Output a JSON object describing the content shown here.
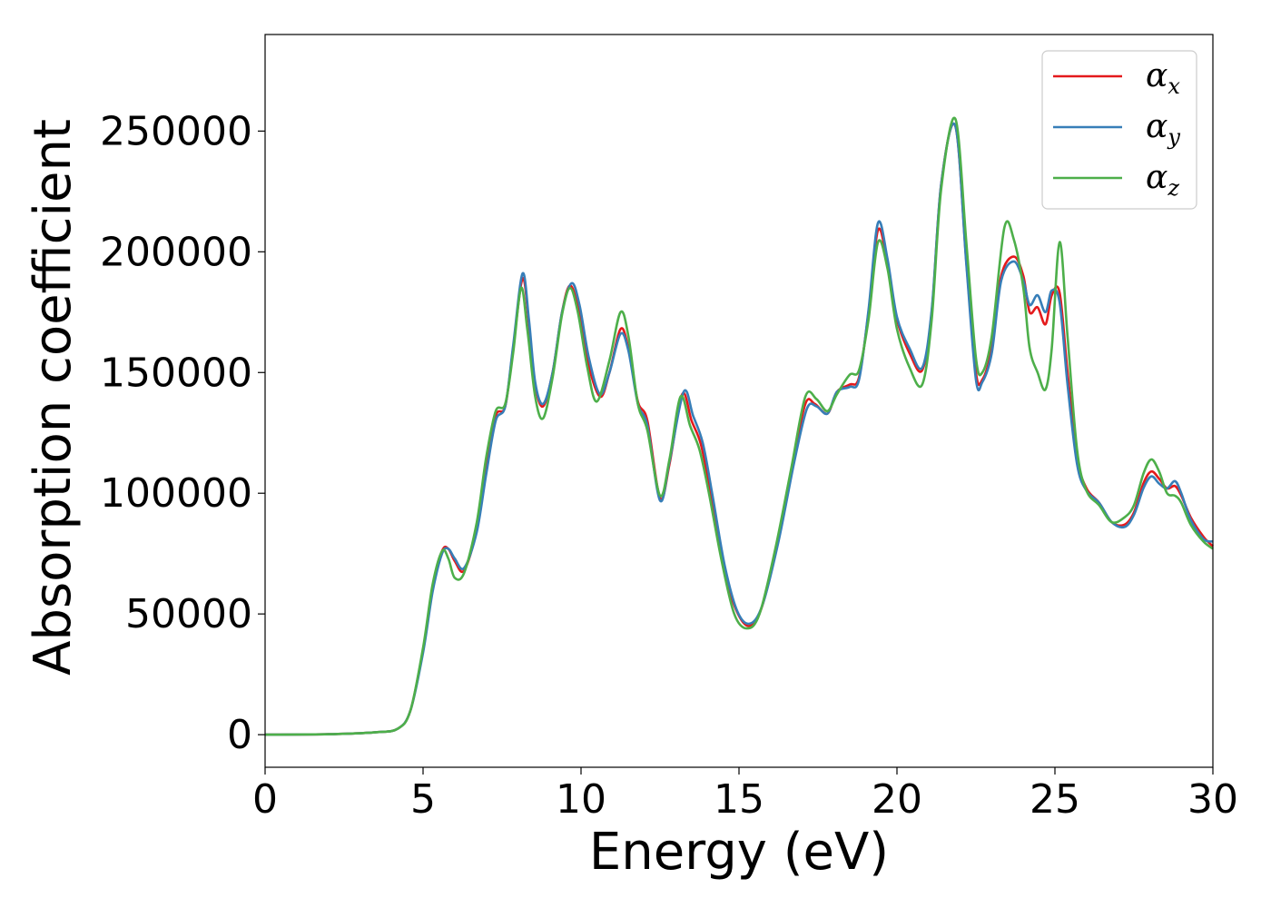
{
  "chart_data": {
    "type": "line",
    "title": "",
    "xlabel": "Energy (eV)",
    "ylabel": "Absorption coefficient",
    "xlim": [
      0,
      30
    ],
    "ylim": [
      -13500,
      290000
    ],
    "grid": false,
    "legend_position": "top-right",
    "x_ticks": [
      0,
      5,
      10,
      15,
      20,
      25,
      30
    ],
    "x_tick_labels": [
      "0",
      "5",
      "10",
      "15",
      "20",
      "25",
      "30"
    ],
    "y_ticks": [
      0,
      50000,
      100000,
      150000,
      200000,
      250000
    ],
    "y_tick_labels": [
      "0",
      "50000",
      "100000",
      "150000",
      "200000",
      "250000"
    ],
    "series": [
      {
        "name": "α_x",
        "legend_base": "α",
        "legend_sub": "x",
        "color": "#e41a1c",
        "points": [
          [
            0,
            0
          ],
          [
            2,
            200
          ],
          [
            3.5,
            1000
          ],
          [
            4.2,
            2500
          ],
          [
            4.6,
            10000
          ],
          [
            5.0,
            35000
          ],
          [
            5.3,
            60000
          ],
          [
            5.6,
            76000
          ],
          [
            5.8,
            77000
          ],
          [
            6.0,
            72000
          ],
          [
            6.3,
            68000
          ],
          [
            6.7,
            85000
          ],
          [
            7.0,
            110000
          ],
          [
            7.3,
            132000
          ],
          [
            7.6,
            136000
          ],
          [
            7.85,
            160000
          ],
          [
            8.15,
            189000
          ],
          [
            8.35,
            170000
          ],
          [
            8.55,
            145000
          ],
          [
            8.8,
            136000
          ],
          [
            9.1,
            150000
          ],
          [
            9.4,
            175000
          ],
          [
            9.65,
            186000
          ],
          [
            9.9,
            177000
          ],
          [
            10.2,
            155000
          ],
          [
            10.6,
            140000
          ],
          [
            10.9,
            150000
          ],
          [
            11.25,
            168000
          ],
          [
            11.5,
            160000
          ],
          [
            11.8,
            138000
          ],
          [
            12.1,
            130000
          ],
          [
            12.5,
            98000
          ],
          [
            12.8,
            112000
          ],
          [
            13.2,
            141000
          ],
          [
            13.5,
            130000
          ],
          [
            13.8,
            120000
          ],
          [
            14.1,
            100000
          ],
          [
            14.5,
            70000
          ],
          [
            14.9,
            52000
          ],
          [
            15.3,
            45000
          ],
          [
            15.7,
            52000
          ],
          [
            16.2,
            78000
          ],
          [
            16.7,
            112000
          ],
          [
            17.1,
            137000
          ],
          [
            17.4,
            137000
          ],
          [
            17.8,
            133000
          ],
          [
            18.1,
            142000
          ],
          [
            18.5,
            145000
          ],
          [
            18.8,
            148000
          ],
          [
            19.1,
            175000
          ],
          [
            19.4,
            209000
          ],
          [
            19.7,
            195000
          ],
          [
            20.0,
            172000
          ],
          [
            20.4,
            158000
          ],
          [
            20.8,
            151000
          ],
          [
            21.1,
            175000
          ],
          [
            21.4,
            228000
          ],
          [
            21.85,
            252000
          ],
          [
            22.2,
            195000
          ],
          [
            22.5,
            150000
          ],
          [
            22.7,
            147000
          ],
          [
            23.0,
            160000
          ],
          [
            23.3,
            190000
          ],
          [
            23.7,
            198000
          ],
          [
            24.0,
            190000
          ],
          [
            24.2,
            175000
          ],
          [
            24.45,
            177000
          ],
          [
            24.7,
            170000
          ],
          [
            24.9,
            182000
          ],
          [
            25.15,
            183000
          ],
          [
            25.4,
            150000
          ],
          [
            25.7,
            115000
          ],
          [
            26.0,
            102000
          ],
          [
            26.4,
            96000
          ],
          [
            26.8,
            88000
          ],
          [
            27.2,
            87000
          ],
          [
            27.5,
            92000
          ],
          [
            27.8,
            104000
          ],
          [
            28.05,
            109000
          ],
          [
            28.3,
            106000
          ],
          [
            28.55,
            102000
          ],
          [
            28.8,
            103000
          ],
          [
            29.0,
            99000
          ],
          [
            29.3,
            90000
          ],
          [
            29.7,
            82000
          ],
          [
            30.0,
            78000
          ]
        ]
      },
      {
        "name": "α_y",
        "legend_base": "α",
        "legend_sub": "y",
        "color": "#377eb8",
        "points": [
          [
            0,
            0
          ],
          [
            2,
            200
          ],
          [
            3.5,
            1000
          ],
          [
            4.2,
            2500
          ],
          [
            4.6,
            10000
          ],
          [
            5.0,
            34000
          ],
          [
            5.3,
            59000
          ],
          [
            5.6,
            75000
          ],
          [
            5.8,
            77000
          ],
          [
            6.0,
            73000
          ],
          [
            6.3,
            69000
          ],
          [
            6.7,
            84000
          ],
          [
            7.0,
            108000
          ],
          [
            7.3,
            130000
          ],
          [
            7.6,
            136000
          ],
          [
            7.85,
            161000
          ],
          [
            8.15,
            191000
          ],
          [
            8.35,
            172000
          ],
          [
            8.55,
            146000
          ],
          [
            8.8,
            137000
          ],
          [
            9.1,
            150000
          ],
          [
            9.4,
            175000
          ],
          [
            9.7,
            187000
          ],
          [
            9.95,
            178000
          ],
          [
            10.25,
            156000
          ],
          [
            10.6,
            141000
          ],
          [
            10.9,
            150000
          ],
          [
            11.25,
            166000
          ],
          [
            11.5,
            159000
          ],
          [
            11.8,
            137000
          ],
          [
            12.1,
            128000
          ],
          [
            12.5,
            97000
          ],
          [
            12.8,
            113000
          ],
          [
            13.25,
            142000
          ],
          [
            13.55,
            132000
          ],
          [
            13.85,
            121000
          ],
          [
            14.15,
            100000
          ],
          [
            14.55,
            70000
          ],
          [
            14.95,
            51000
          ],
          [
            15.35,
            46000
          ],
          [
            15.75,
            54000
          ],
          [
            16.25,
            80000
          ],
          [
            16.75,
            113000
          ],
          [
            17.15,
            135000
          ],
          [
            17.45,
            136000
          ],
          [
            17.8,
            133000
          ],
          [
            18.1,
            142000
          ],
          [
            18.5,
            144000
          ],
          [
            18.8,
            147000
          ],
          [
            19.1,
            176000
          ],
          [
            19.4,
            212000
          ],
          [
            19.7,
            197000
          ],
          [
            20.0,
            173000
          ],
          [
            20.4,
            160000
          ],
          [
            20.8,
            152000
          ],
          [
            21.1,
            176000
          ],
          [
            21.4,
            228000
          ],
          [
            21.85,
            252000
          ],
          [
            22.2,
            194000
          ],
          [
            22.5,
            147000
          ],
          [
            22.7,
            146000
          ],
          [
            23.0,
            158000
          ],
          [
            23.3,
            188000
          ],
          [
            23.7,
            196000
          ],
          [
            24.0,
            188000
          ],
          [
            24.2,
            178000
          ],
          [
            24.45,
            182000
          ],
          [
            24.7,
            175000
          ],
          [
            24.9,
            184000
          ],
          [
            25.15,
            179000
          ],
          [
            25.4,
            145000
          ],
          [
            25.7,
            112000
          ],
          [
            26.0,
            101000
          ],
          [
            26.4,
            96000
          ],
          [
            26.8,
            88000
          ],
          [
            27.2,
            86000
          ],
          [
            27.5,
            91000
          ],
          [
            27.8,
            102000
          ],
          [
            28.05,
            107000
          ],
          [
            28.3,
            104000
          ],
          [
            28.55,
            102000
          ],
          [
            28.8,
            105000
          ],
          [
            29.0,
            100000
          ],
          [
            29.3,
            89000
          ],
          [
            29.7,
            81000
          ],
          [
            30.0,
            80000
          ]
        ]
      },
      {
        "name": "α_z",
        "legend_base": "α",
        "legend_sub": "z",
        "color": "#4daf4a",
        "points": [
          [
            0,
            0
          ],
          [
            2,
            200
          ],
          [
            3.5,
            1000
          ],
          [
            4.2,
            2500
          ],
          [
            4.6,
            10000
          ],
          [
            5.0,
            36000
          ],
          [
            5.3,
            62000
          ],
          [
            5.6,
            76000
          ],
          [
            5.8,
            73000
          ],
          [
            6.0,
            65000
          ],
          [
            6.3,
            67000
          ],
          [
            6.7,
            88000
          ],
          [
            7.0,
            115000
          ],
          [
            7.3,
            134000
          ],
          [
            7.6,
            137000
          ],
          [
            7.85,
            158000
          ],
          [
            8.1,
            185000
          ],
          [
            8.3,
            168000
          ],
          [
            8.55,
            140000
          ],
          [
            8.8,
            131000
          ],
          [
            9.1,
            148000
          ],
          [
            9.4,
            174000
          ],
          [
            9.65,
            185000
          ],
          [
            9.9,
            175000
          ],
          [
            10.2,
            152000
          ],
          [
            10.5,
            138000
          ],
          [
            10.9,
            155000
          ],
          [
            11.25,
            175000
          ],
          [
            11.5,
            165000
          ],
          [
            11.8,
            137000
          ],
          [
            12.1,
            126000
          ],
          [
            12.5,
            99000
          ],
          [
            12.8,
            114000
          ],
          [
            13.15,
            140000
          ],
          [
            13.45,
            128000
          ],
          [
            13.75,
            118000
          ],
          [
            14.05,
            100000
          ],
          [
            14.45,
            72000
          ],
          [
            14.85,
            50000
          ],
          [
            15.25,
            44000
          ],
          [
            15.65,
            50000
          ],
          [
            16.15,
            77000
          ],
          [
            16.65,
            110000
          ],
          [
            17.1,
            140000
          ],
          [
            17.45,
            139000
          ],
          [
            17.8,
            134000
          ],
          [
            18.1,
            141000
          ],
          [
            18.5,
            149000
          ],
          [
            18.8,
            151000
          ],
          [
            19.1,
            172000
          ],
          [
            19.4,
            204000
          ],
          [
            19.7,
            193000
          ],
          [
            20.0,
            168000
          ],
          [
            20.4,
            152000
          ],
          [
            20.8,
            145000
          ],
          [
            21.1,
            172000
          ],
          [
            21.4,
            226000
          ],
          [
            21.85,
            255000
          ],
          [
            22.2,
            203000
          ],
          [
            22.5,
            156000
          ],
          [
            22.7,
            150000
          ],
          [
            23.0,
            165000
          ],
          [
            23.4,
            210000
          ],
          [
            23.7,
            205000
          ],
          [
            24.0,
            185000
          ],
          [
            24.2,
            160000
          ],
          [
            24.45,
            150000
          ],
          [
            24.7,
            143000
          ],
          [
            24.9,
            160000
          ],
          [
            25.15,
            204000
          ],
          [
            25.4,
            165000
          ],
          [
            25.7,
            118000
          ],
          [
            26.0,
            101000
          ],
          [
            26.4,
            95000
          ],
          [
            26.8,
            88000
          ],
          [
            27.2,
            90000
          ],
          [
            27.5,
            95000
          ],
          [
            27.8,
            108000
          ],
          [
            28.05,
            114000
          ],
          [
            28.3,
            109000
          ],
          [
            28.55,
            100000
          ],
          [
            28.8,
            99000
          ],
          [
            29.0,
            96000
          ],
          [
            29.3,
            87000
          ],
          [
            29.7,
            80000
          ],
          [
            30.0,
            77000
          ]
        ]
      }
    ]
  }
}
